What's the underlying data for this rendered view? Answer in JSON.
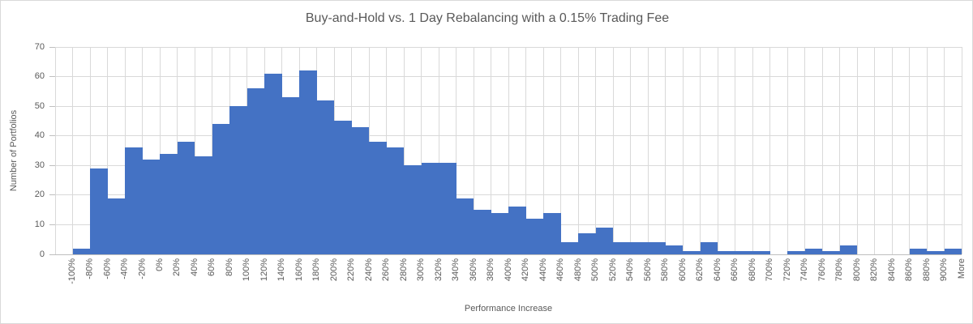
{
  "chart": {
    "title": "Buy-and-Hold vs. 1 Day Rebalancing with a 0.15% Trading Fee",
    "xlabel": "Performance Increase",
    "ylabel": "Number of Portfolios"
  },
  "chart_data": {
    "type": "bar",
    "subtype": "histogram",
    "title": "Buy-and-Hold vs. 1 Day Rebalancing with a 0.15% Trading Fee",
    "xlabel": "Performance Increase",
    "ylabel": "Number of Portfolios",
    "categories": [
      "-100%",
      "-80%",
      "-60%",
      "-40%",
      "-20%",
      "0%",
      "20%",
      "40%",
      "60%",
      "80%",
      "100%",
      "120%",
      "140%",
      "160%",
      "180%",
      "200%",
      "220%",
      "240%",
      "260%",
      "280%",
      "300%",
      "320%",
      "340%",
      "360%",
      "380%",
      "400%",
      "420%",
      "440%",
      "460%",
      "480%",
      "500%",
      "520%",
      "540%",
      "560%",
      "580%",
      "600%",
      "620%",
      "640%",
      "660%",
      "680%",
      "700%",
      "720%",
      "740%",
      "760%",
      "780%",
      "800%",
      "820%",
      "840%",
      "860%",
      "880%",
      "900%",
      "More"
    ],
    "values": [
      0,
      2,
      29,
      19,
      36,
      32,
      34,
      38,
      33,
      44,
      50,
      56,
      61,
      53,
      62,
      52,
      45,
      43,
      38,
      36,
      30,
      31,
      31,
      19,
      15,
      14,
      16,
      12,
      14,
      4,
      7,
      9,
      4,
      4,
      4,
      3,
      1,
      4,
      1,
      1,
      1,
      0,
      1,
      2,
      1,
      3,
      0,
      0,
      0,
      2,
      1,
      2
    ],
    "ylim": [
      0,
      70
    ],
    "yticks": [
      0,
      10,
      20,
      30,
      40,
      50,
      60,
      70
    ],
    "grid": true,
    "legend": false,
    "bar_gap": 0,
    "bar_color": "#4472c4",
    "grid_color": "#d9d9d9",
    "axis_color": "#bfbfbf",
    "text_color": "#595959",
    "background_color": "#ffffff"
  }
}
